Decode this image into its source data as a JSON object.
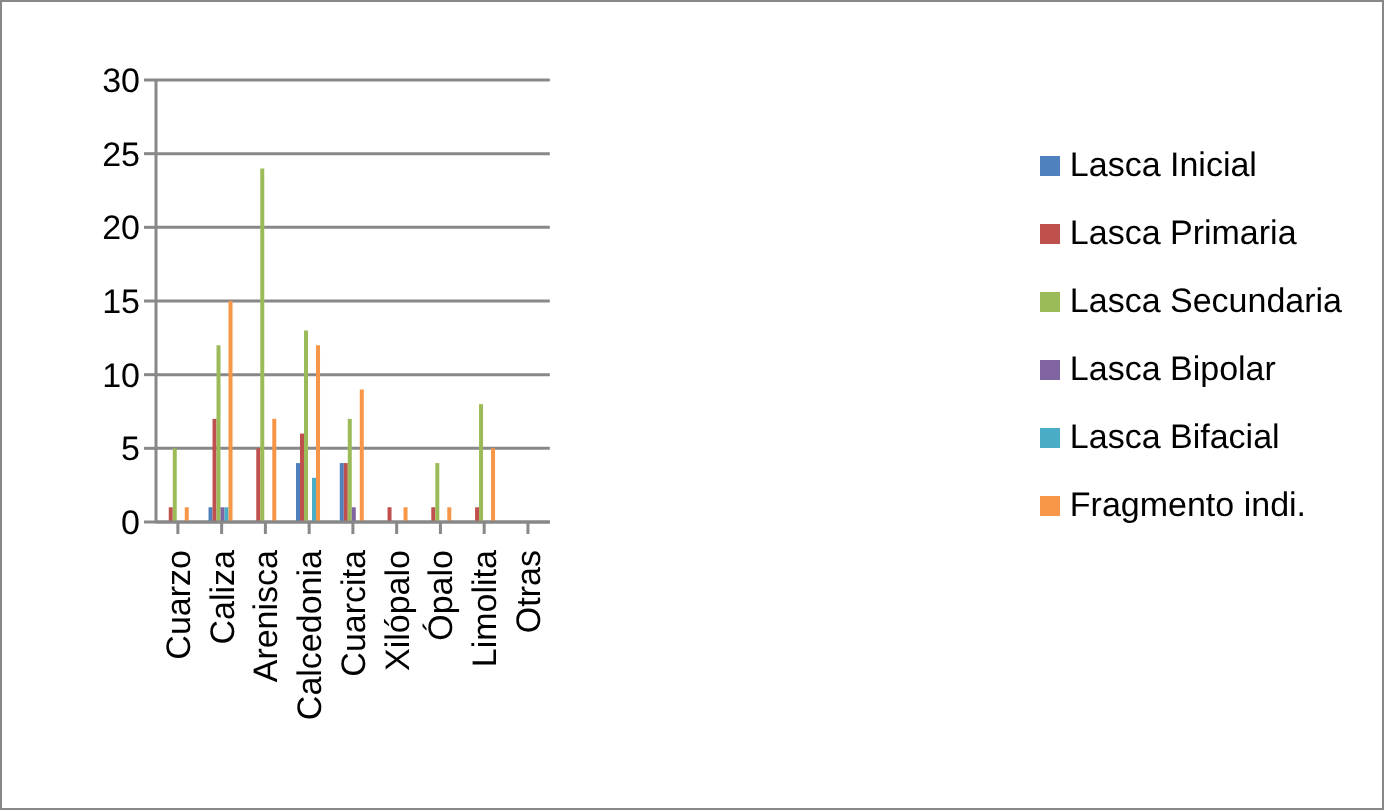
{
  "chart_data": {
    "type": "bar",
    "categories": [
      "Cuarzo",
      "Caliza",
      "Arenisca",
      "Calcedonia",
      "Cuarcita",
      "Xilópalo",
      "Ópalo",
      "Limolita",
      "Otras"
    ],
    "series": [
      {
        "name": "Lasca Inicial",
        "color": "#4f81bd",
        "values": [
          0,
          1,
          0,
          4,
          4,
          0,
          0,
          0,
          0
        ]
      },
      {
        "name": "Lasca Primaria",
        "color": "#c0504d",
        "values": [
          1,
          7,
          5,
          6,
          4,
          1,
          1,
          1,
          0
        ]
      },
      {
        "name": "Lasca Secundaria",
        "color": "#9bbb59",
        "values": [
          5,
          12,
          24,
          13,
          7,
          0,
          4,
          8,
          0
        ]
      },
      {
        "name": "Lasca Bipolar",
        "color": "#8064a2",
        "values": [
          0,
          1,
          0,
          0,
          1,
          0,
          0,
          0,
          0
        ]
      },
      {
        "name": "Lasca Bifacial",
        "color": "#4bacc6",
        "values": [
          0,
          1,
          0,
          3,
          0,
          0,
          0,
          0,
          0
        ]
      },
      {
        "name": "Fragmento indi.",
        "color": "#f79646",
        "values": [
          1,
          15,
          7,
          12,
          9,
          1,
          1,
          5,
          0
        ]
      }
    ],
    "ylim": [
      0,
      30
    ],
    "yticks": [
      0,
      5,
      10,
      15,
      20,
      25,
      30
    ],
    "grid": "y",
    "legend": "right"
  }
}
